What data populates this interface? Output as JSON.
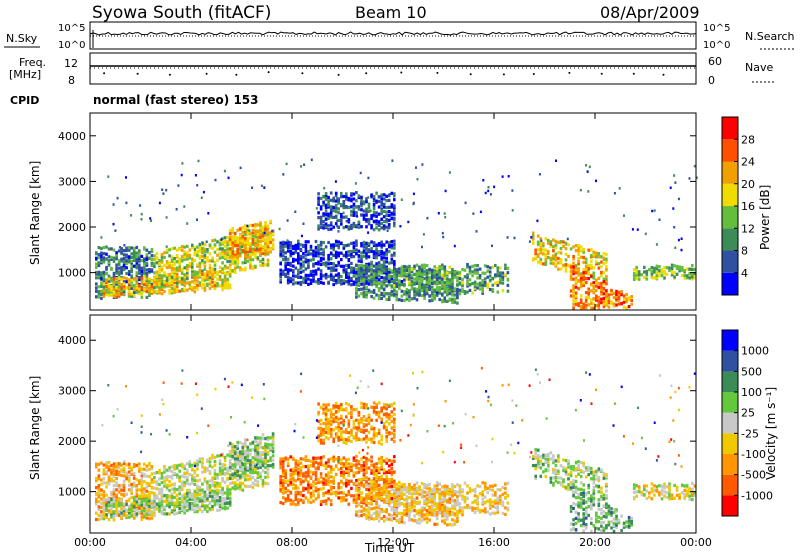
{
  "header": {
    "title": "Syowa South (fitACF)",
    "beam": "Beam 10",
    "date": "08/Apr/2009"
  },
  "panels": {
    "nsky_label": "N.Sky",
    "nsearch_label": "N.Search",
    "nsky_ticks_left": [
      "10^5",
      "10^0"
    ],
    "nsky_ticks_right": [
      "10^5",
      "10^0"
    ],
    "freq_label_1": "Freq.",
    "freq_label_2": "[MHz]",
    "freq_ticks": [
      "12",
      "8"
    ],
    "nave_label": "Nave",
    "nave_ticks": [
      "60",
      "0"
    ],
    "cpid_label": "CPID",
    "cpid_value": "normal (fast stereo) 153"
  },
  "colors": {
    "power_scale": [
      "#0000ff",
      "#3050a0",
      "#3c8c5a",
      "#64be3c",
      "#f0dc00",
      "#f0a000",
      "#ff5000",
      "#ff0000"
    ],
    "velocity_scale": [
      "#ff0000",
      "#ff5a00",
      "#ff9600",
      "#f0c800",
      "#c8c8c8",
      "#64c83c",
      "#3c8c5a",
      "#3050a0",
      "#0000ff"
    ]
  },
  "chart_data": [
    {
      "type": "heatmap",
      "name": "power",
      "ylabel": "Slant Range [km]",
      "y_ticks": [
        "4000",
        "3000",
        "2000",
        "1000"
      ],
      "ylim": [
        180,
        4500
      ],
      "colorbar_label": "Power [dB]",
      "colorbar_ticks": [
        "28",
        "24",
        "20",
        "16",
        "12",
        "8",
        "4"
      ],
      "colorbar_range": [
        0,
        30
      ]
    },
    {
      "type": "heatmap",
      "name": "velocity",
      "ylabel": "Slant Range [km]",
      "y_ticks": [
        "4000",
        "3000",
        "2000",
        "1000"
      ],
      "ylim": [
        180,
        4500
      ],
      "colorbar_label": "Velocity [m s⁻¹]",
      "colorbar_ticks": [
        "1000",
        "500",
        "100",
        "25",
        "-25",
        "-100",
        "-500",
        "-1000"
      ],
      "xlabel": "Time UT",
      "x_ticks": [
        "00:00",
        "04:00",
        "08:00",
        "12:00",
        "16:00",
        "20:00",
        "00:00"
      ],
      "xlim": [
        0,
        24
      ]
    }
  ]
}
